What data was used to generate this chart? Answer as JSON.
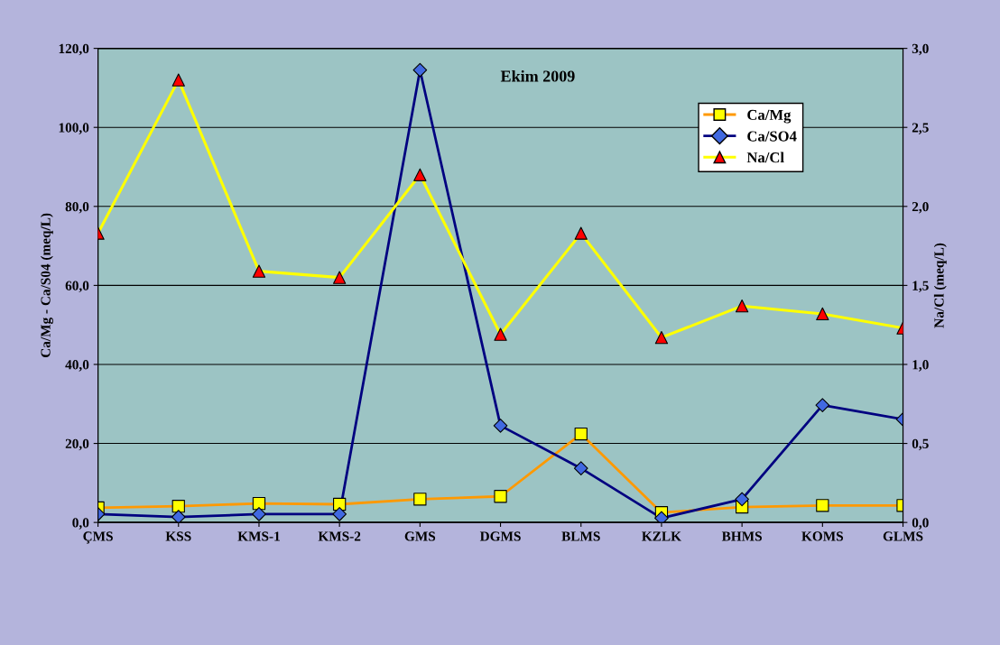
{
  "chart_data": {
    "type": "line",
    "title": "Ekim 2009",
    "ylabel": "Ca/Mg - Ca/S04 (meq/L)",
    "y2label": "Na/Cl (meq/L)",
    "categories": [
      "ÇMS",
      "KSS",
      "KMS-1",
      "KMS-2",
      "GMS",
      "DGMS",
      "BLMS",
      "KZLK",
      "BHMS",
      "KOMS",
      "GLMS"
    ],
    "series": [
      {
        "name": "Ca/Mg",
        "color": "#ff9900",
        "marker": "square",
        "colors": [
          "#ffff00",
          "#ffff00",
          "#ffff00",
          "#ffff00",
          "#ffff00",
          "#ffff00",
          "#ffff00",
          "#ffff00",
          "#ffff00",
          "#ffff00",
          "#ffff00"
        ],
        "values": [
          3.7,
          4.1,
          4.8,
          4.6,
          5.9,
          6.6,
          22.4,
          2.5,
          3.9,
          4.3,
          4.3
        ]
      },
      {
        "name": "Ca/SO4",
        "color": "#000080",
        "marker": "diamond",
        "colors": [
          "#4169e1",
          "#4169e1",
          "#4169e1",
          "#4169e1",
          "#4169e1",
          "#4169e1",
          "#4169e1",
          "#4169e1",
          "#4169e1",
          "#4169e1",
          "#4169e1"
        ],
        "values": [
          2.1,
          1.4,
          2.1,
          2.1,
          114.5,
          24.5,
          13.7,
          1.1,
          5.9,
          29.7,
          26.1
        ]
      },
      {
        "name": "Na/Cl",
        "color": "#ffff00",
        "marker": "triangle",
        "axis": "y2",
        "colors": [
          "#ff0000",
          "#ff0000",
          "#ff0000",
          "#ff0000",
          "#ff0000",
          "#ff0000",
          "#ff0000",
          "#ff0000",
          "#ff0000",
          "#ff0000",
          "#ff0000"
        ],
        "values": [
          1.83,
          2.8,
          1.59,
          1.55,
          2.2,
          1.19,
          1.83,
          1.17,
          1.37,
          1.32,
          1.23
        ]
      }
    ],
    "ylim": [
      0,
      120
    ],
    "yticks": [
      {
        "value": 0,
        "label": "0,0"
      },
      {
        "value": 20,
        "label": "20,0"
      },
      {
        "value": 40,
        "label": "40,0"
      },
      {
        "value": 60,
        "label": "60,0"
      },
      {
        "value": 80,
        "label": "80,0"
      },
      {
        "value": 100,
        "label": "100,0"
      },
      {
        "value": 120,
        "label": "120,0"
      }
    ],
    "y2lim": [
      0,
      3
    ],
    "y2ticks": [
      {
        "value": 0,
        "label": "0,0"
      },
      {
        "value": 0.5,
        "label": "0,5"
      },
      {
        "value": 1,
        "label": "1,0"
      },
      {
        "value": 1.5,
        "label": "1,5"
      },
      {
        "value": 2,
        "label": "2,0"
      },
      {
        "value": 2.5,
        "label": "2,5"
      },
      {
        "value": 3,
        "label": "3,0"
      }
    ],
    "grid": "y",
    "legend": "top right",
    "line_style": "solid"
  }
}
